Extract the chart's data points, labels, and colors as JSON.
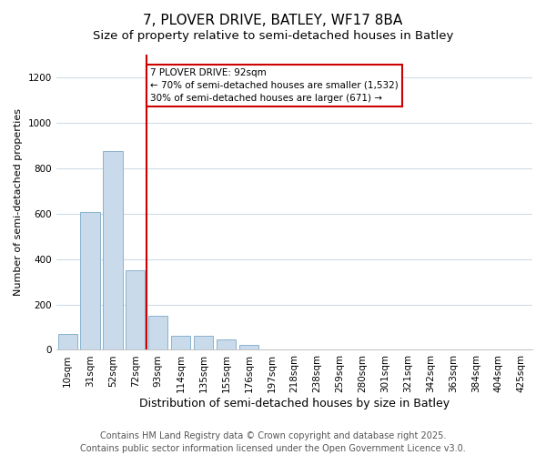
{
  "title": "7, PLOVER DRIVE, BATLEY, WF17 8BA",
  "subtitle": "Size of property relative to semi-detached houses in Batley",
  "xlabel": "Distribution of semi-detached houses by size in Batley",
  "ylabel": "Number of semi-detached properties",
  "categories": [
    "10sqm",
    "31sqm",
    "52sqm",
    "72sqm",
    "93sqm",
    "114sqm",
    "135sqm",
    "155sqm",
    "176sqm",
    "197sqm",
    "218sqm",
    "238sqm",
    "259sqm",
    "280sqm",
    "301sqm",
    "321sqm",
    "342sqm",
    "363sqm",
    "384sqm",
    "404sqm",
    "425sqm"
  ],
  "values": [
    70,
    605,
    875,
    350,
    150,
    62,
    62,
    45,
    20,
    0,
    0,
    0,
    0,
    0,
    0,
    0,
    0,
    0,
    0,
    0,
    0
  ],
  "bar_color": "#c9daea",
  "bar_edge_color": "#7aaac8",
  "annotation_text": "7 PLOVER DRIVE: 92sqm\n← 70% of semi-detached houses are smaller (1,532)\n30% of semi-detached houses are larger (671) →",
  "annotation_box_color": "#ffffff",
  "annotation_box_edge_color": "#cc0000",
  "footer_line1": "Contains HM Land Registry data © Crown copyright and database right 2025.",
  "footer_line2": "Contains public sector information licensed under the Open Government Licence v3.0.",
  "ylim": [
    0,
    1300
  ],
  "yticks": [
    0,
    200,
    400,
    600,
    800,
    1000,
    1200
  ],
  "background_color": "#ffffff",
  "plot_background_color": "#ffffff",
  "title_fontsize": 11,
  "subtitle_fontsize": 9.5,
  "xlabel_fontsize": 9,
  "ylabel_fontsize": 8,
  "tick_fontsize": 7.5,
  "footer_fontsize": 7,
  "annotation_fontsize": 7.5,
  "grid_color": "#d0dce8",
  "red_line_color": "#cc0000",
  "red_line_bin_index": 4
}
